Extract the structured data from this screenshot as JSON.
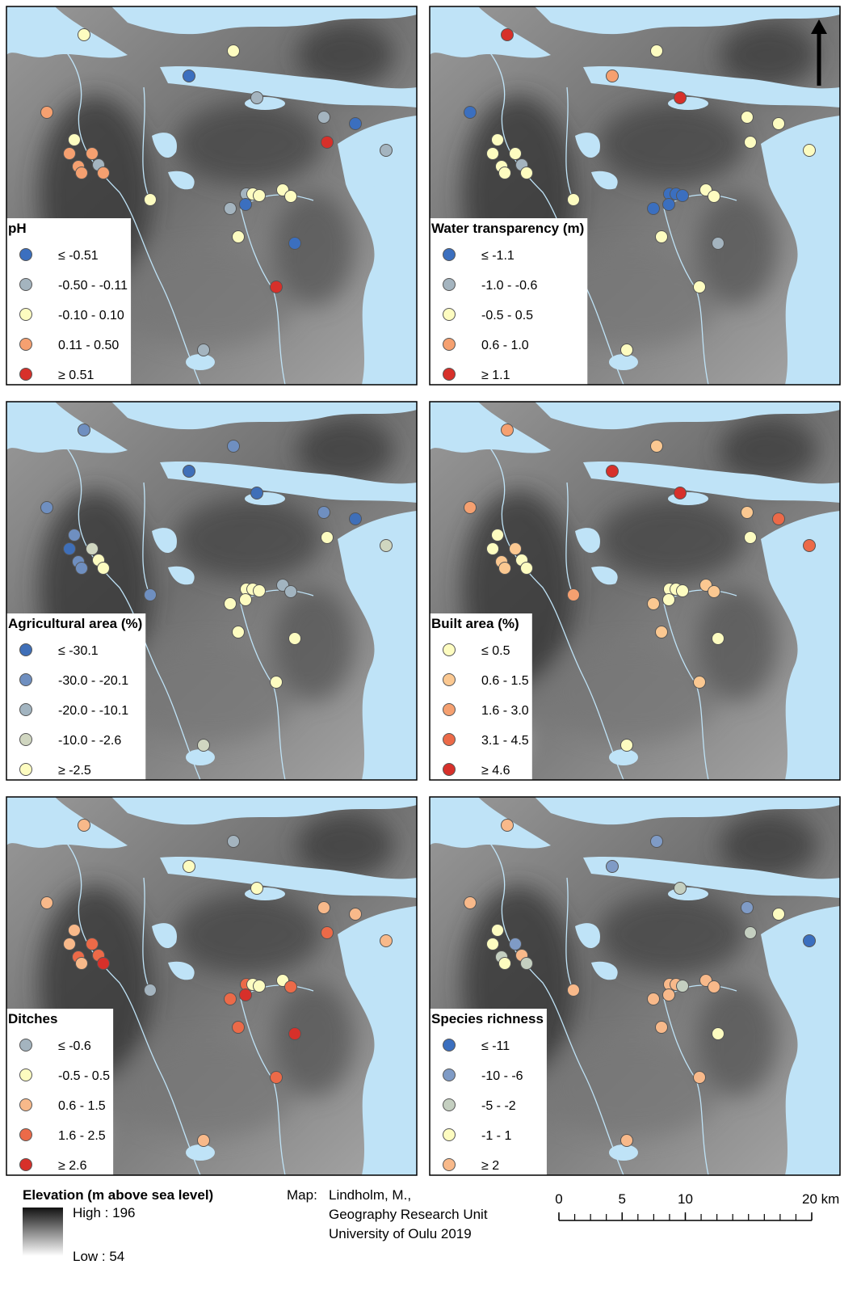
{
  "panels": [
    {
      "title": "pH",
      "classes": [
        {
          "label": "≤ -0.51",
          "color": "#3b6fbf"
        },
        {
          "label": "-0.50 - -0.11",
          "color": "#a4b4bf"
        },
        {
          "label": "-0.10 - 0.10",
          "color": "#fdfcc0"
        },
        {
          "label": "0.11 - 0.50",
          "color": "#f5a070"
        },
        {
          "label": "≥ 0.51",
          "color": "#d7302a"
        }
      ]
    },
    {
      "title": "Water transparency (m)",
      "classes": [
        {
          "label": "≤ -1.1",
          "color": "#3b6fbf"
        },
        {
          "label": "-1.0 - -0.6",
          "color": "#a4b4bf"
        },
        {
          "label": "-0.5 - 0.5",
          "color": "#fdfcc0"
        },
        {
          "label": "0.6 - 1.0",
          "color": "#f5a070"
        },
        {
          "label": "≥ 1.1",
          "color": "#d7302a"
        }
      ]
    },
    {
      "title": "Agricultural area (%)",
      "classes": [
        {
          "label": "≤ -30.1",
          "color": "#3f6fb8"
        },
        {
          "label": "-30.0 - -20.1",
          "color": "#6f8fc0"
        },
        {
          "label": "-20.0 - -10.1",
          "color": "#a2b4c0"
        },
        {
          "label": "-10.0 - -2.6",
          "color": "#d0d6c0"
        },
        {
          "label": "≥ -2.5",
          "color": "#fdfcc0"
        }
      ]
    },
    {
      "title": "Built area (%)",
      "classes": [
        {
          "label": "≤ 0.5",
          "color": "#fdfcc0"
        },
        {
          "label": "0.6 - 1.5",
          "color": "#fbc891"
        },
        {
          "label": "1.6 - 3.0",
          "color": "#f5a070"
        },
        {
          "label": "3.1 - 4.5",
          "color": "#ec6a48"
        },
        {
          "label": "≥ 4.6",
          "color": "#d7302a"
        }
      ]
    },
    {
      "title": "Ditches",
      "classes": [
        {
          "label": "≤ -0.6",
          "color": "#a4b4bf"
        },
        {
          "label": "-0.5 - 0.5",
          "color": "#fdfcc0"
        },
        {
          "label": "0.6 - 1.5",
          "color": "#f8b98a"
        },
        {
          "label": "1.6 - 2.5",
          "color": "#ec6a48"
        },
        {
          "label": "≥ 2.6",
          "color": "#d7302a"
        }
      ]
    },
    {
      "title": "Species richness",
      "classes": [
        {
          "label": "≤ -11",
          "color": "#3b6fbf"
        },
        {
          "label": "-10 - -6",
          "color": "#7f9bc6"
        },
        {
          "label": "-5 - -2",
          "color": "#c4cfc0"
        },
        {
          "label": "-1 - 1",
          "color": "#fdfcc0"
        },
        {
          "label": "≥ 2",
          "color": "#f8b98a"
        }
      ]
    }
  ],
  "elevation_legend": {
    "title": "Elevation (m above sea level)",
    "high": "High : 196",
    "low": "Low : 54"
  },
  "credit": [
    "Map:",
    "Lindholm, M.,",
    "Geography Research Unit",
    "University of Oulu 2019"
  ],
  "scale_bar": {
    "xlim": [
      0,
      20
    ],
    "ticks": [
      0,
      5,
      10,
      {
        "value": 20,
        "label": "20 km"
      }
    ]
  }
}
